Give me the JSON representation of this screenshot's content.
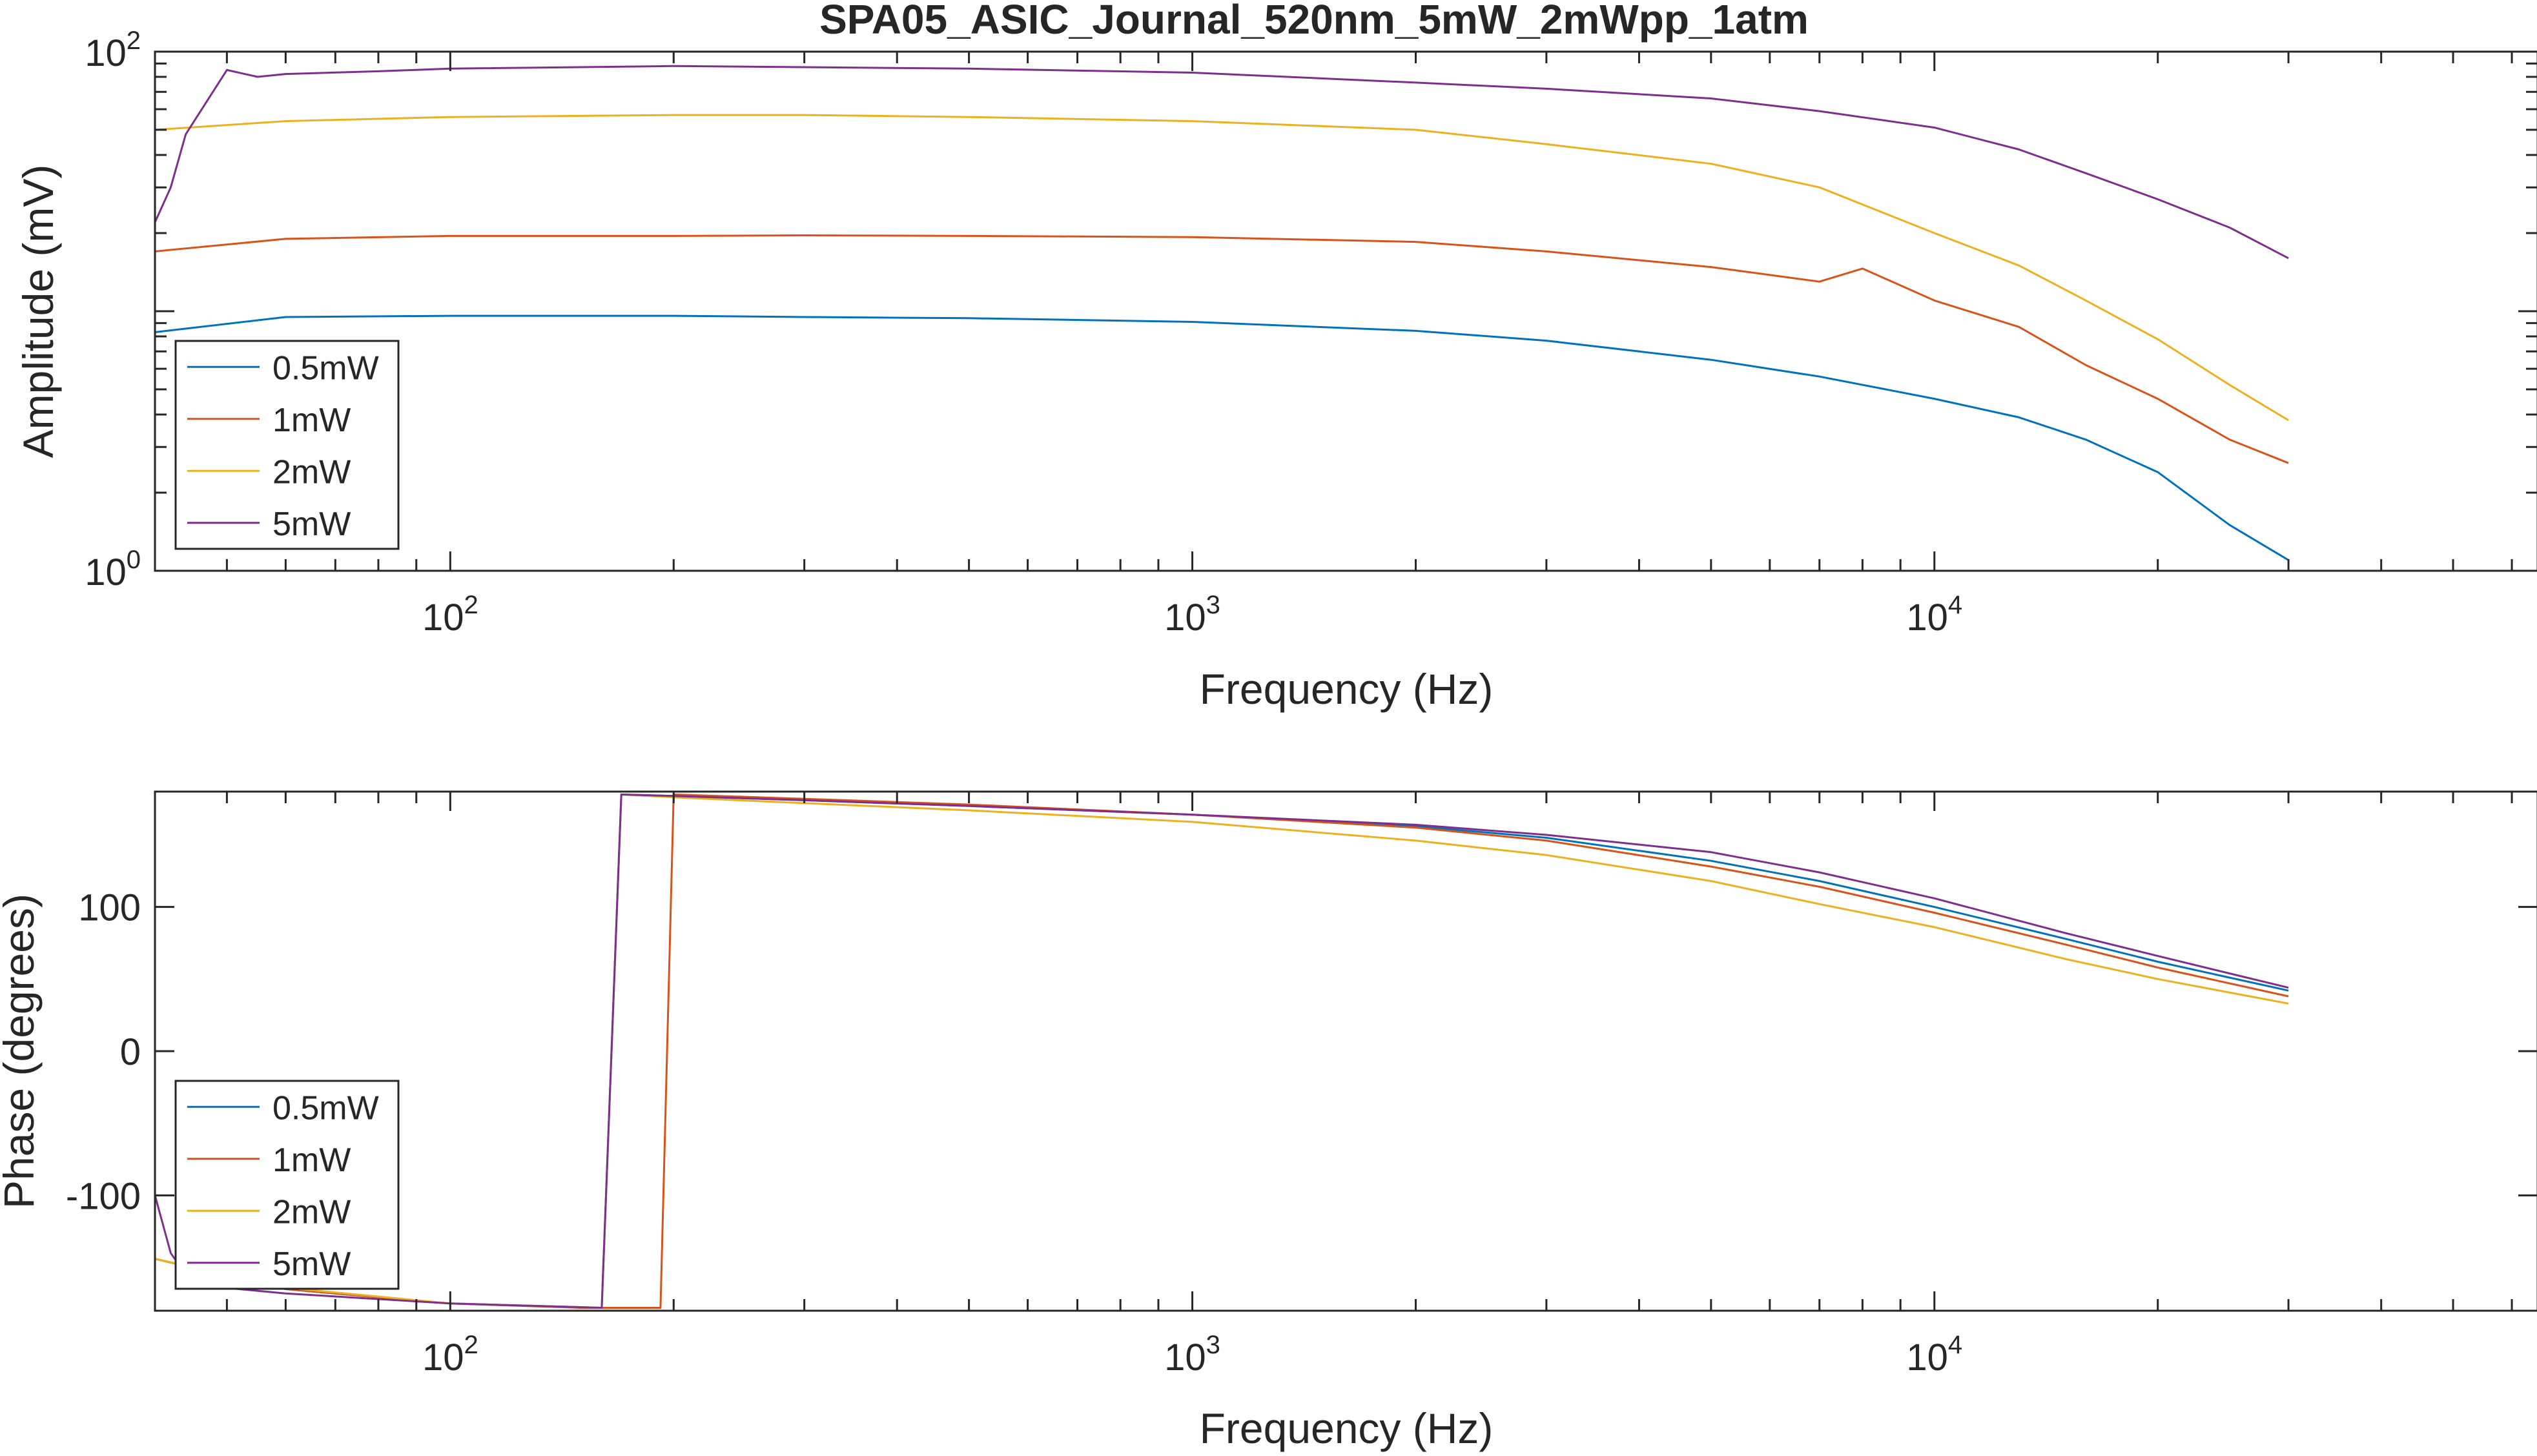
{
  "chart_data": [
    {
      "type": "line",
      "title": "SPA05_ASIC_Journal_520nm_5mW_2mWpp_1atm",
      "xlabel": "Frequency (Hz)",
      "ylabel": "Amplitude (mV)",
      "xscale": "log",
      "yscale": "log",
      "xlim": [
        40,
        65000
      ],
      "ylim": [
        1,
        100
      ],
      "xticks": [
        {
          "value": 100,
          "base": "10",
          "exp": "2"
        },
        {
          "value": 1000,
          "base": "10",
          "exp": "3"
        },
        {
          "value": 10000,
          "base": "10",
          "exp": "4"
        }
      ],
      "yticks": [
        {
          "value": 1,
          "base": "10",
          "exp": "0"
        },
        {
          "value": 100,
          "base": "10",
          "exp": "2"
        }
      ],
      "grid": false,
      "legend_position": "bottom-left",
      "series": [
        {
          "name": "0.5mW",
          "color": "#0072BD",
          "x": [
            40,
            60,
            100,
            200,
            300,
            500,
            1000,
            2000,
            3000,
            5000,
            7000,
            10000,
            13000,
            16000,
            20000,
            25000,
            30000
          ],
          "y": [
            8.3,
            9.5,
            9.6,
            9.6,
            9.5,
            9.4,
            9.1,
            8.4,
            7.7,
            6.5,
            5.6,
            4.6,
            3.9,
            3.2,
            2.4,
            1.5,
            1.1
          ]
        },
        {
          "name": "1mW",
          "color": "#D95319",
          "x": [
            40,
            60,
            100,
            200,
            300,
            500,
            1000,
            2000,
            3000,
            5000,
            7000,
            8000,
            10000,
            13000,
            16000,
            20000,
            25000,
            30000
          ],
          "y": [
            17,
            19,
            19.5,
            19.5,
            19.6,
            19.5,
            19.3,
            18.5,
            17,
            14.8,
            13,
            14.6,
            11,
            8.7,
            6.2,
            4.6,
            3.2,
            2.6
          ]
        },
        {
          "name": "2mW",
          "color": "#EDB120",
          "x": [
            40,
            60,
            100,
            200,
            300,
            500,
            1000,
            2000,
            3000,
            5000,
            7000,
            10000,
            13000,
            16000,
            20000,
            25000,
            30000
          ],
          "y": [
            50,
            54,
            56,
            57,
            57,
            56,
            54,
            50,
            44,
            37,
            30,
            20,
            15,
            11,
            7.8,
            5.2,
            3.8
          ]
        },
        {
          "name": "5mW",
          "color": "#7E2F8E",
          "x": [
            40,
            42,
            44,
            50,
            55,
            60,
            80,
            100,
            200,
            500,
            1000,
            2000,
            3000,
            5000,
            7000,
            10000,
            13000,
            16000,
            20000,
            25000,
            30000
          ],
          "y": [
            22,
            30,
            48,
            85,
            80,
            82,
            84,
            86,
            88,
            86,
            83,
            76,
            72,
            66,
            59,
            51,
            42,
            34,
            27,
            21,
            16
          ]
        }
      ]
    },
    {
      "type": "line",
      "title": "",
      "xlabel": "Frequency (Hz)",
      "ylabel": "Phase (degrees)",
      "xscale": "log",
      "yscale": "linear",
      "xlim": [
        40,
        65000
      ],
      "ylim": [
        -180,
        180
      ],
      "xticks": [
        {
          "value": 100,
          "base": "10",
          "exp": "2"
        },
        {
          "value": 1000,
          "base": "10",
          "exp": "3"
        },
        {
          "value": 10000,
          "base": "10",
          "exp": "4"
        }
      ],
      "yticks": [
        {
          "value": -100,
          "label": "-100"
        },
        {
          "value": 0,
          "label": "0"
        },
        {
          "value": 100,
          "label": "100"
        }
      ],
      "grid": false,
      "legend_position": "bottom-left",
      "series": [
        {
          "name": "0.5mW",
          "color": "#0072BD",
          "x": [
            40,
            60,
            100,
            160,
            170,
            200,
            300,
            500,
            1000,
            2000,
            3000,
            5000,
            7000,
            10000,
            15000,
            20000,
            30000
          ],
          "y": [
            -144,
            -165,
            -175,
            -178,
            178,
            177,
            174,
            170,
            164,
            156,
            148,
            132,
            118,
            100,
            78,
            62,
            42
          ]
        },
        {
          "name": "1mW",
          "color": "#D95319",
          "x": [
            40,
            60,
            100,
            150,
            192,
            200,
            300,
            500,
            1000,
            2000,
            3000,
            5000,
            7000,
            10000,
            15000,
            20000,
            30000
          ],
          "y": [
            -144,
            -165,
            -175,
            -178,
            -178,
            178,
            175,
            171,
            164,
            155,
            146,
            128,
            114,
            96,
            74,
            58,
            38
          ]
        },
        {
          "name": "2mW",
          "color": "#EDB120",
          "x": [
            40,
            60,
            100,
            160,
            170,
            200,
            300,
            500,
            1000,
            2000,
            3000,
            5000,
            7000,
            10000,
            15000,
            20000,
            30000
          ],
          "y": [
            -144,
            -164,
            -175,
            -178,
            178,
            176,
            172,
            167,
            159,
            146,
            136,
            118,
            102,
            86,
            64,
            50,
            33
          ]
        },
        {
          "name": "5mW",
          "color": "#7E2F8E",
          "x": [
            40,
            42,
            45,
            60,
            100,
            160,
            170,
            200,
            300,
            500,
            1000,
            2000,
            3000,
            5000,
            7000,
            10000,
            15000,
            20000,
            30000
          ],
          "y": [
            -100,
            -140,
            -162,
            -168,
            -175,
            -178,
            178,
            177,
            174,
            170,
            164,
            157,
            150,
            138,
            124,
            106,
            82,
            66,
            44
          ]
        }
      ]
    }
  ]
}
